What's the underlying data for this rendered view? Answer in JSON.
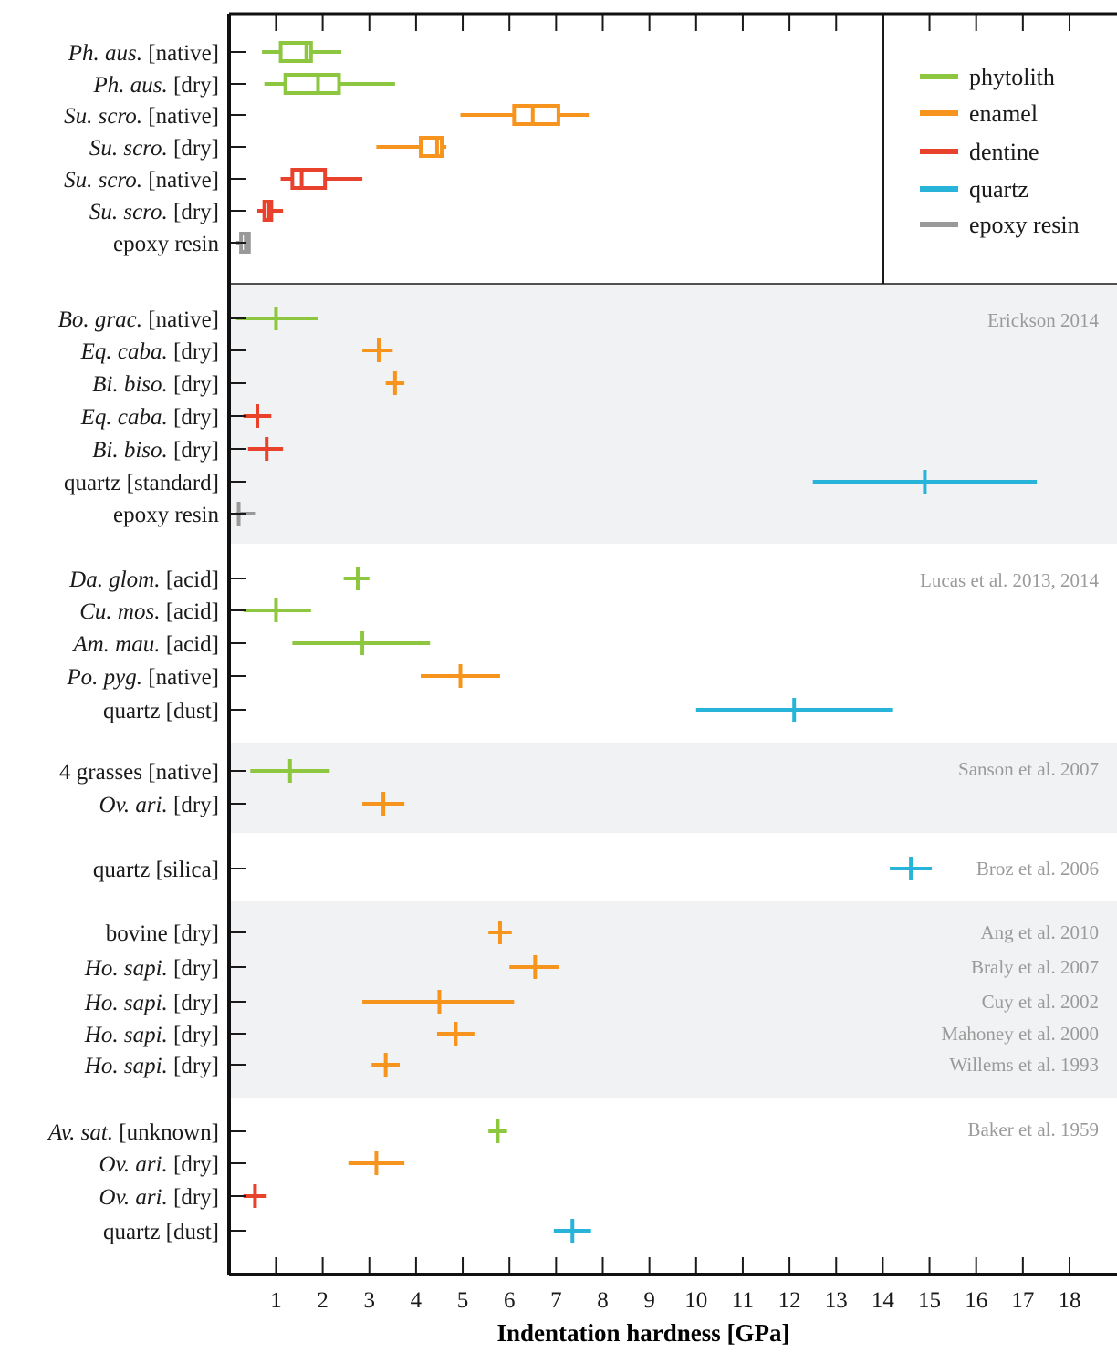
{
  "chart_data": {
    "type": "box",
    "xlabel": "Indentation hardness [GPa]",
    "xlim": [
      0,
      18.5
    ],
    "x_ticks": [
      1,
      2,
      3,
      4,
      5,
      6,
      7,
      8,
      9,
      10,
      11,
      12,
      13,
      14,
      15,
      16,
      17,
      18
    ],
    "colors": {
      "phytolith": "#8dc63f",
      "enamel": "#f7941d",
      "dentine": "#e8412c",
      "quartz": "#27b4d8",
      "epoxy resin": "#999999"
    },
    "legend": {
      "placement": "top-right",
      "entries": [
        "phytolith",
        "enamel",
        "dentine",
        "quartz",
        "epoxy resin"
      ]
    },
    "groups": [
      {
        "source": "",
        "shaded": false,
        "rows": [
          {
            "label": {
              "it": "Ph. aus.",
              "rest": " [native]"
            },
            "category": "phytolith",
            "min": 0.7,
            "q1": 1.1,
            "median": 1.65,
            "q3": 1.75,
            "max": 2.4
          },
          {
            "label": {
              "it": "Ph. aus.",
              "rest": " [dry]"
            },
            "category": "phytolith",
            "min": 0.75,
            "q1": 1.2,
            "median": 1.9,
            "q3": 2.35,
            "max": 3.55
          },
          {
            "label": {
              "it": "Su. scro.",
              "rest": " [native]"
            },
            "category": "enamel",
            "min": 4.95,
            "q1": 6.1,
            "median": 6.5,
            "q3": 7.05,
            "max": 7.7
          },
          {
            "label": {
              "it": "Su. scro.",
              "rest": " [dry]"
            },
            "category": "enamel",
            "min": 3.15,
            "q1": 4.1,
            "median": 4.45,
            "q3": 4.55,
            "max": 4.65
          },
          {
            "label": {
              "it": "Su. scro.",
              "rest": " [native]"
            },
            "category": "dentine",
            "min": 1.1,
            "q1": 1.35,
            "median": 1.55,
            "q3": 2.05,
            "max": 2.85
          },
          {
            "label": {
              "it": "Su. scro.",
              "rest": " [dry]"
            },
            "category": "dentine",
            "min": 0.6,
            "q1": 0.75,
            "median": 0.85,
            "q3": 0.9,
            "max": 1.15
          },
          {
            "label": {
              "it": "",
              "rest": "epoxy resin"
            },
            "category": "epoxy resin",
            "min": 0.15,
            "q1": 0.25,
            "median": 0.35,
            "q3": 0.42,
            "max": 0.45
          }
        ]
      },
      {
        "source": "Erickson 2014",
        "shaded": true,
        "rows": [
          {
            "label": {
              "it": "Bo. grac.",
              "rest": " [native]"
            },
            "category": "phytolith",
            "min": 0.15,
            "mean": 1.0,
            "max": 1.9
          },
          {
            "label": {
              "it": "Eq. caba.",
              "rest": " [dry]"
            },
            "category": "enamel",
            "min": 2.85,
            "mean": 3.2,
            "max": 3.5
          },
          {
            "label": {
              "it": "Bi. biso.",
              "rest": " [dry]"
            },
            "category": "enamel",
            "min": 3.35,
            "mean": 3.55,
            "max": 3.75
          },
          {
            "label": {
              "it": "Eq. caba.",
              "rest": " [dry]"
            },
            "category": "dentine",
            "min": 0.3,
            "mean": 0.6,
            "max": 0.9
          },
          {
            "label": {
              "it": "Bi. biso.",
              "rest": " [dry]"
            },
            "category": "dentine",
            "min": 0.4,
            "mean": 0.8,
            "max": 1.15
          },
          {
            "label": {
              "it": "",
              "rest": "quartz [standard]"
            },
            "category": "quartz",
            "min": 12.5,
            "mean": 14.9,
            "max": 17.3
          },
          {
            "label": {
              "it": "",
              "rest": "epoxy resin"
            },
            "category": "epoxy resin",
            "min": 0.15,
            "mean": 0.2,
            "max": 0.55
          }
        ]
      },
      {
        "source": "Lucas et al. 2013, 2014",
        "shaded": false,
        "rows": [
          {
            "label": {
              "it": "Da. glom.",
              "rest": " [acid]"
            },
            "category": "phytolith",
            "min": 2.45,
            "mean": 2.75,
            "max": 3.0
          },
          {
            "label": {
              "it": "Cu. mos.",
              "rest": " [acid]"
            },
            "category": "phytolith",
            "min": 0.3,
            "mean": 1.0,
            "max": 1.75
          },
          {
            "label": {
              "it": "Am. mau.",
              "rest": " [acid]"
            },
            "category": "phytolith",
            "min": 1.35,
            "mean": 2.85,
            "max": 4.3
          },
          {
            "label": {
              "it": "Po. pyg.",
              "rest": " [native]"
            },
            "category": "enamel",
            "min": 4.1,
            "mean": 4.95,
            "max": 5.8
          },
          {
            "label": {
              "it": "",
              "rest": "quartz [dust]"
            },
            "category": "quartz",
            "min": 10.0,
            "mean": 12.1,
            "max": 14.2
          }
        ]
      },
      {
        "source": "Sanson et al. 2007",
        "shaded": true,
        "rows": [
          {
            "label": {
              "it": "",
              "rest": "4 grasses [native]"
            },
            "category": "phytolith",
            "min": 0.45,
            "mean": 1.3,
            "max": 2.15
          },
          {
            "label": {
              "it": "Ov. ari.",
              "rest": " [dry]"
            },
            "category": "enamel",
            "min": 2.85,
            "mean": 3.3,
            "max": 3.75
          }
        ]
      },
      {
        "source": "Broz et al. 2006",
        "shaded": false,
        "rows": [
          {
            "label": {
              "it": "",
              "rest": "quartz [silica]"
            },
            "category": "quartz",
            "min": 14.15,
            "mean": 14.6,
            "max": 15.05
          }
        ]
      },
      {
        "source": "",
        "shaded": true,
        "rows": [
          {
            "label": {
              "it": "",
              "rest": "bovine [dry]"
            },
            "category": "enamel",
            "min": 5.55,
            "mean": 5.8,
            "max": 6.05,
            "source": "Ang et al. 2010"
          },
          {
            "label": {
              "it": "Ho. sapi.",
              "rest": " [dry]"
            },
            "category": "enamel",
            "min": 6.0,
            "mean": 6.55,
            "max": 7.05,
            "source": "Braly et al. 2007"
          },
          {
            "label": {
              "it": "Ho. sapi.",
              "rest": " [dry]"
            },
            "category": "enamel",
            "min": 2.85,
            "mean": 4.5,
            "max": 6.1,
            "source": "Cuy et al. 2002"
          },
          {
            "label": {
              "it": "Ho. sapi.",
              "rest": " [dry]"
            },
            "category": "enamel",
            "min": 4.45,
            "mean": 4.85,
            "max": 5.25,
            "source": "Mahoney et al. 2000"
          },
          {
            "label": {
              "it": "Ho. sapi.",
              "rest": " [dry]"
            },
            "category": "enamel",
            "min": 3.05,
            "mean": 3.35,
            "max": 3.65,
            "source": "Willems et al. 1993"
          }
        ]
      },
      {
        "source": "Baker et al. 1959",
        "shaded": false,
        "rows": [
          {
            "label": {
              "it": "Av. sat.",
              "rest": " [unknown]"
            },
            "category": "phytolith",
            "min": 5.55,
            "mean": 5.75,
            "max": 5.95
          },
          {
            "label": {
              "it": "Ov. ari.",
              "rest": " [dry]"
            },
            "category": "enamel",
            "min": 2.55,
            "mean": 3.15,
            "max": 3.75
          },
          {
            "label": {
              "it": "Ov. ari.",
              "rest": " [dry]"
            },
            "category": "dentine",
            "min": 0.3,
            "mean": 0.55,
            "max": 0.8
          },
          {
            "label": {
              "it": "",
              "rest": "quartz [dust]"
            },
            "category": "quartz",
            "min": 6.95,
            "mean": 7.35,
            "max": 7.75
          }
        ]
      }
    ]
  }
}
